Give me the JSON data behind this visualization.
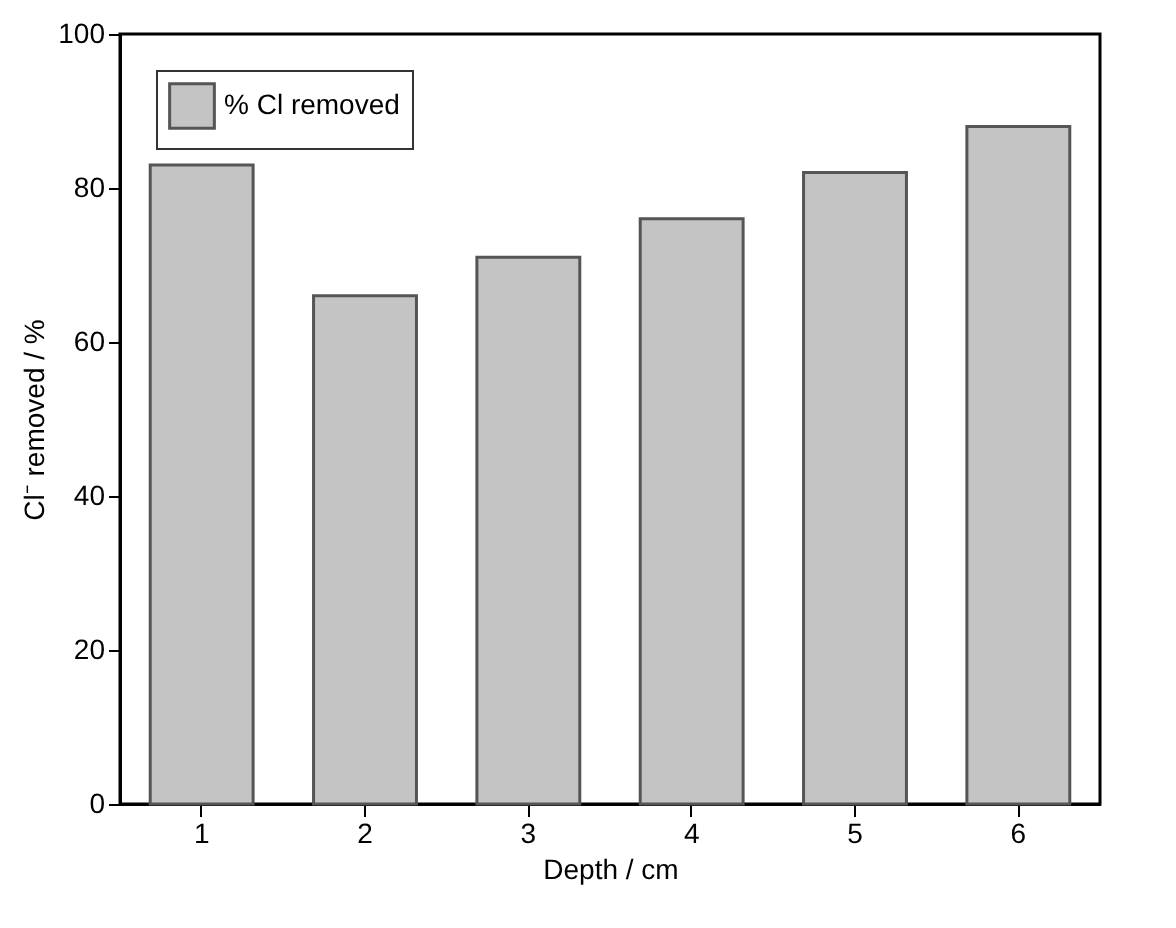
{
  "chart_data": {
    "type": "bar",
    "xlabel": "Depth / cm",
    "ylabel": "Cl⁻ removed / %",
    "categories": [
      "1",
      "2",
      "3",
      "4",
      "5",
      "6"
    ],
    "series": [
      {
        "name": "% Cl removed",
        "color": "#c4c4c4",
        "values": [
          83,
          66,
          71,
          76,
          82,
          88
        ]
      }
    ],
    "ylim": [
      0,
      100
    ],
    "yticks": [
      0,
      20,
      40,
      60,
      80,
      100
    ],
    "grid": false,
    "legend": "top left"
  }
}
